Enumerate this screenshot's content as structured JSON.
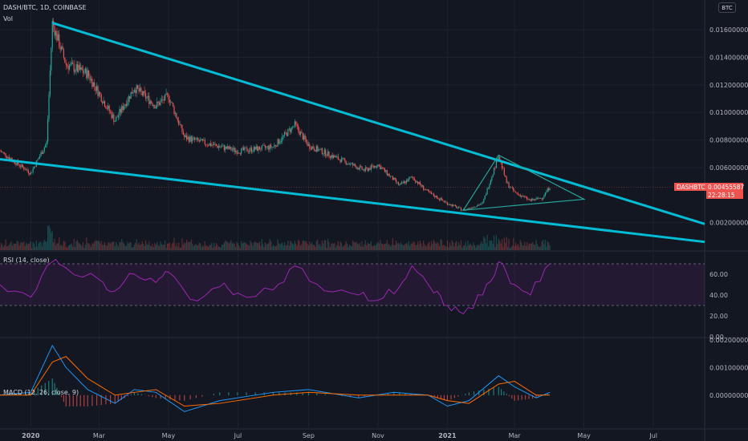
{
  "header": {
    "symbol": "DASH/BTC, 1D, COINBASE",
    "volume_label": "Vol"
  },
  "currency_button": "BTC",
  "price_tag": {
    "symbol": "DASHBTC",
    "price": "0.00455587",
    "countdown": "22:28:15"
  },
  "colors": {
    "background": "#131722",
    "up": "#26a69a",
    "down": "#ef5350",
    "trendline": "#00bcd4",
    "rsi": "#9c27b0",
    "macd": "#2196f3",
    "signal": "#ff6d00",
    "triangle": "#26a69a"
  },
  "chart_data": [
    {
      "panel": "price",
      "type": "candlestick",
      "y_axis_labels": [
        "0.01600000",
        "0.01400000",
        "0.01200000",
        "0.01000000",
        "0.00800000",
        "0.00600000",
        "0.00200000"
      ],
      "ylim": [
        0.0,
        0.017
      ],
      "x_axis_labels": [
        "2020",
        "Mar",
        "May",
        "Jul",
        "Sep",
        "Nov",
        "2021",
        "Mar",
        "May",
        "Jul"
      ],
      "series": [
        {
          "name": "",
          "x": [
            "2019-12",
            "2020-01-01",
            "2020-01-15",
            "2020-01-20",
            "2020-02-01",
            "2020-02-20",
            "2020-03-15",
            "2020-04-01",
            "2020-04-20",
            "2020-05-01",
            "2020-05-15",
            "2020-06-01",
            "2020-07-01",
            "2020-08-01",
            "2020-08-20",
            "2020-09-01",
            "2020-10-01",
            "2020-10-20",
            "2020-11-01",
            "2020-11-20",
            "2020-12-01",
            "2020-12-15",
            "2021-01-01",
            "2021-01-15",
            "2021-02-01",
            "2021-02-15",
            "2021-02-22",
            "2021-03-01",
            "2021-03-15",
            "2021-03-25",
            "2021-04-01"
          ],
          "values": [
            0.0072,
            0.0056,
            0.0078,
            0.0165,
            0.0135,
            0.0128,
            0.0094,
            0.0118,
            0.0105,
            0.0112,
            0.0082,
            0.0078,
            0.0072,
            0.0075,
            0.0091,
            0.0076,
            0.0065,
            0.0058,
            0.0062,
            0.0047,
            0.0053,
            0.0042,
            0.0034,
            0.0029,
            0.0034,
            0.0069,
            0.0049,
            0.0042,
            0.0036,
            0.0038,
            0.0046
          ]
        }
      ],
      "annotations": [
        "descending upper trendline",
        "descending lower trendline",
        "symmetrical triangle"
      ]
    },
    {
      "panel": "rsi",
      "type": "line",
      "title": "RSI (14, close)",
      "y_axis_labels": [
        "60.00",
        "40.00",
        "20.00",
        "0.00"
      ],
      "ylim": [
        0,
        80
      ],
      "bands": [
        70,
        30
      ],
      "series": [
        {
          "name": "",
          "x": [
            "2019-12",
            "2020-01-01",
            "2020-01-20",
            "2020-02-01",
            "2020-03-01",
            "2020-03-15",
            "2020-04-01",
            "2020-04-20",
            "2020-05-01",
            "2020-05-20",
            "2020-06-15",
            "2020-07-01",
            "2020-08-01",
            "2020-08-20",
            "2020-09-15",
            "2020-10-15",
            "2020-11-01",
            "2020-11-20",
            "2020-12-01",
            "2020-12-20",
            "2021-01-01",
            "2021-01-15",
            "2021-02-01",
            "2021-02-15",
            "2021-03-01",
            "2021-03-15",
            "2021-04-01"
          ],
          "values": [
            50,
            38,
            72,
            66,
            55,
            44,
            60,
            52,
            62,
            36,
            48,
            42,
            45,
            68,
            44,
            40,
            35,
            48,
            68,
            42,
            30,
            22,
            40,
            72,
            50,
            40,
            70
          ]
        }
      ]
    },
    {
      "panel": "macd",
      "type": "line",
      "title": "MACD (12, 26, close, 9)",
      "y_axis_labels": [
        "0.00200000",
        "0.00100000",
        "0.00000000"
      ],
      "ylim": [
        -0.0012,
        0.002
      ],
      "series": [
        {
          "name": "",
          "x": [
            "2019-12",
            "2020-01-01",
            "2020-01-20",
            "2020-02-01",
            "2020-02-20",
            "2020-03-15",
            "2020-04-01",
            "2020-04-20",
            "2020-05-15",
            "2020-06-15",
            "2020-08-01",
            "2020-09-01",
            "2020-10-15",
            "2020-11-15",
            "2020-12-15",
            "2021-01-01",
            "2021-01-20",
            "2021-02-15",
            "2021-03-01",
            "2021-03-20",
            "2021-04-01"
          ],
          "values": [
            0.0,
            0.0001,
            0.0018,
            0.001,
            0.0002,
            -0.0003,
            0.0002,
            0.0001,
            -0.0006,
            -0.0002,
            0.0001,
            0.0002,
            -0.0001,
            0.0001,
            0.0,
            -0.0004,
            -0.0002,
            0.0007,
            0.0003,
            -0.0001,
            0.0001
          ]
        },
        {
          "name": "",
          "x": [
            "2019-12",
            "2020-01-01",
            "2020-01-20",
            "2020-02-01",
            "2020-02-20",
            "2020-03-15",
            "2020-04-01",
            "2020-04-20",
            "2020-05-15",
            "2020-06-15",
            "2020-08-01",
            "2020-09-01",
            "2020-10-15",
            "2020-11-15",
            "2020-12-15",
            "2021-01-01",
            "2021-01-20",
            "2021-02-15",
            "2021-03-01",
            "2021-03-20",
            "2021-04-01"
          ],
          "values": [
            0.0,
            0.0,
            0.0012,
            0.0014,
            0.0006,
            0.0,
            0.0001,
            0.0002,
            -0.0004,
            -0.0003,
            0.0,
            0.0001,
            0.0,
            0.0,
            0.0,
            -0.0002,
            -0.0003,
            0.0004,
            0.0005,
            0.0,
            0.0
          ]
        }
      ]
    }
  ]
}
